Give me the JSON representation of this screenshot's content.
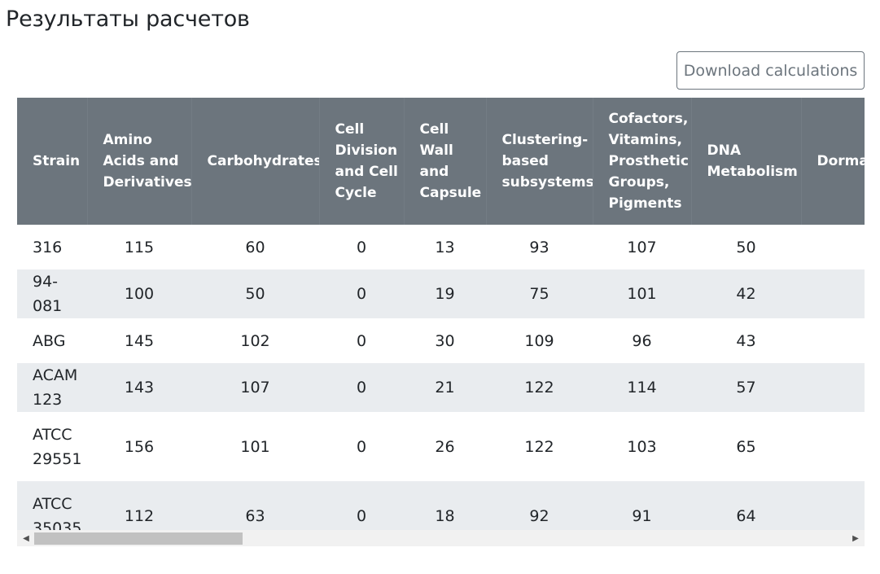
{
  "page": {
    "title": "Результаты расчетов",
    "download_label": "Download calculations"
  },
  "table": {
    "headers": [
      "Strain",
      "Amino Acids and Derivatives",
      "Carbohydrates",
      "Cell Division and Cell Cycle",
      "Cell Wall and Capsule",
      "Clustering-based subsystems",
      "Cofactors, Vitamins, Prosthetic Groups, Pigments",
      "DNA Metabolism",
      "Dormancy and Sporulation"
    ],
    "rows": [
      [
        "316",
        "115",
        "60",
        "0",
        "13",
        "93",
        "107",
        "50",
        ""
      ],
      [
        "94-081",
        "100",
        "50",
        "0",
        "19",
        "75",
        "101",
        "42",
        ""
      ],
      [
        "ABG",
        "145",
        "102",
        "0",
        "30",
        "109",
        "96",
        "43",
        ""
      ],
      [
        "ACAM 123",
        "143",
        "107",
        "0",
        "21",
        "122",
        "114",
        "57",
        ""
      ],
      [
        "ATCC 29551",
        "156",
        "101",
        "0",
        "26",
        "122",
        "103",
        "65",
        ""
      ],
      [
        "ATCC 35035",
        "112",
        "63",
        "0",
        "18",
        "92",
        "91",
        "64",
        ""
      ]
    ]
  },
  "colors": {
    "header_bg": "#6c757d",
    "stripe_bg": "#e9ecef",
    "button_border": "#6c757d"
  },
  "scrollbar": {
    "left_arrow_icon": "triangle-left-icon",
    "right_arrow_icon": "triangle-right-icon"
  }
}
